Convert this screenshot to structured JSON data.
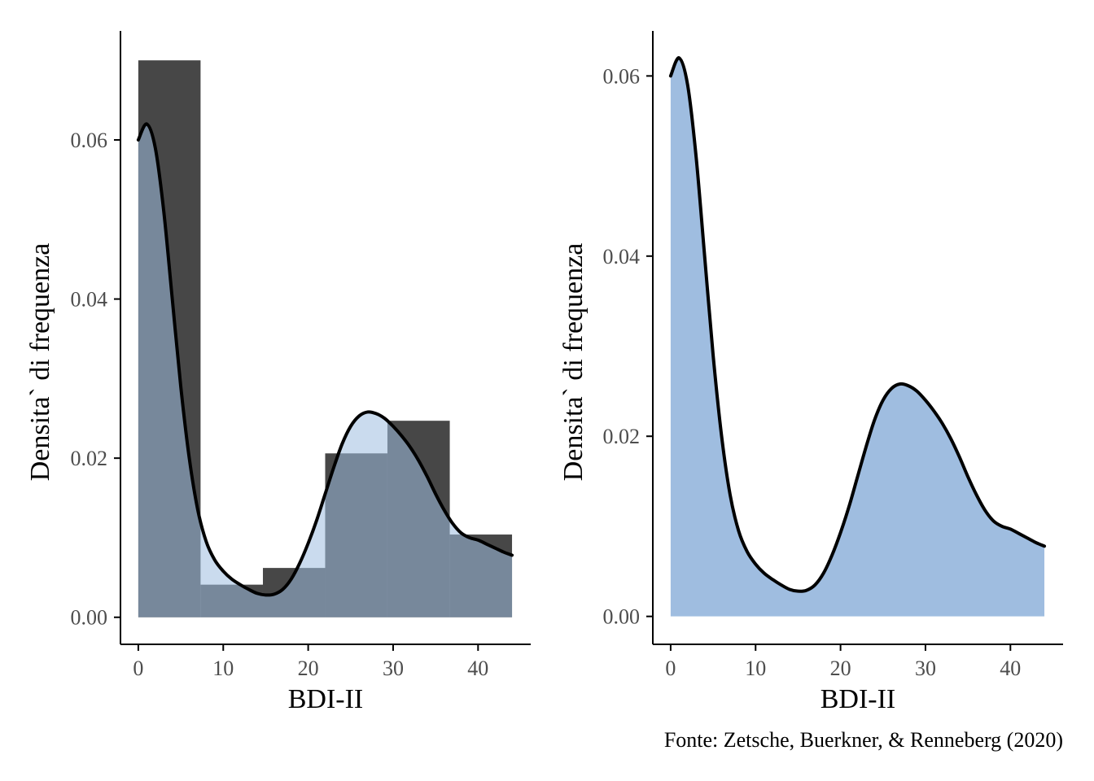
{
  "colors": {
    "histogram_fill": "#474747",
    "density_fill": "#9fbde0",
    "density_line": "#000000",
    "axis": "#000000",
    "tick_label": "#4d4d4d"
  },
  "caption": "Fonte: Zetsche, Buerkner, & Renneberg (2020)",
  "chart_data": [
    {
      "type": "bar",
      "title": "",
      "xlabel": "BDI-II",
      "ylabel": "Densita` di frequenza",
      "xlim": [
        -2.1,
        46.2
      ],
      "ylim": [
        -0.0034,
        0.0737
      ],
      "xticks": [
        0,
        10,
        20,
        30,
        40
      ],
      "xtick_labels": [
        "0",
        "10",
        "20",
        "30",
        "40"
      ],
      "yticks": [
        0.0,
        0.02,
        0.04,
        0.06
      ],
      "ytick_labels": [
        "0.00",
        "0.02",
        "0.04",
        "0.06"
      ],
      "grid": false,
      "histogram": {
        "bin_edges": [
          0,
          7.33,
          14.67,
          22,
          29.33,
          36.67,
          44
        ],
        "values": [
          0.07,
          0.0041,
          0.0062,
          0.0206,
          0.0247,
          0.0104
        ]
      },
      "density": {
        "filled": true,
        "x": [
          0,
          1,
          2,
          3,
          4,
          5,
          6,
          7,
          8,
          9,
          10,
          11,
          12,
          13,
          14,
          15,
          16,
          17,
          18,
          19,
          20,
          21,
          22,
          23,
          24,
          25,
          26,
          27,
          28,
          29,
          30,
          31,
          32,
          33,
          34,
          35,
          36,
          37,
          38,
          39,
          40,
          41,
          42,
          43,
          44
        ],
        "y": [
          0.06,
          0.062,
          0.059,
          0.051,
          0.04,
          0.029,
          0.02,
          0.0135,
          0.0095,
          0.0072,
          0.0058,
          0.0048,
          0.0041,
          0.0035,
          0.003,
          0.0028,
          0.0029,
          0.0035,
          0.0048,
          0.0068,
          0.0093,
          0.0122,
          0.0155,
          0.0188,
          0.0218,
          0.024,
          0.0253,
          0.0258,
          0.0256,
          0.025,
          0.024,
          0.0228,
          0.0214,
          0.0197,
          0.0177,
          0.0155,
          0.0135,
          0.0118,
          0.0106,
          0.01,
          0.0097,
          0.0092,
          0.0087,
          0.0082,
          0.0078
        ]
      }
    },
    {
      "type": "area",
      "title": "",
      "xlabel": "BDI-II",
      "ylabel": "Densita` di frequenza",
      "xlim": [
        -2.1,
        46.2
      ],
      "ylim": [
        -0.0031,
        0.065
      ],
      "xticks": [
        0,
        10,
        20,
        30,
        40
      ],
      "xtick_labels": [
        "0",
        "10",
        "20",
        "30",
        "40"
      ],
      "yticks": [
        0.0,
        0.02,
        0.04,
        0.06
      ],
      "ytick_labels": [
        "0.00",
        "0.02",
        "0.04",
        "0.06"
      ],
      "grid": false,
      "density": {
        "filled": true,
        "x": [
          0,
          1,
          2,
          3,
          4,
          5,
          6,
          7,
          8,
          9,
          10,
          11,
          12,
          13,
          14,
          15,
          16,
          17,
          18,
          19,
          20,
          21,
          22,
          23,
          24,
          25,
          26,
          27,
          28,
          29,
          30,
          31,
          32,
          33,
          34,
          35,
          36,
          37,
          38,
          39,
          40,
          41,
          42,
          43,
          44
        ],
        "y": [
          0.06,
          0.062,
          0.059,
          0.051,
          0.04,
          0.029,
          0.02,
          0.0135,
          0.0095,
          0.0072,
          0.0058,
          0.0048,
          0.0041,
          0.0035,
          0.003,
          0.0028,
          0.0029,
          0.0035,
          0.0048,
          0.0068,
          0.0093,
          0.0122,
          0.0155,
          0.0188,
          0.0218,
          0.024,
          0.0253,
          0.0258,
          0.0256,
          0.025,
          0.024,
          0.0228,
          0.0214,
          0.0197,
          0.0177,
          0.0155,
          0.0135,
          0.0118,
          0.0106,
          0.01,
          0.0097,
          0.0092,
          0.0087,
          0.0082,
          0.0078
        ]
      }
    }
  ]
}
